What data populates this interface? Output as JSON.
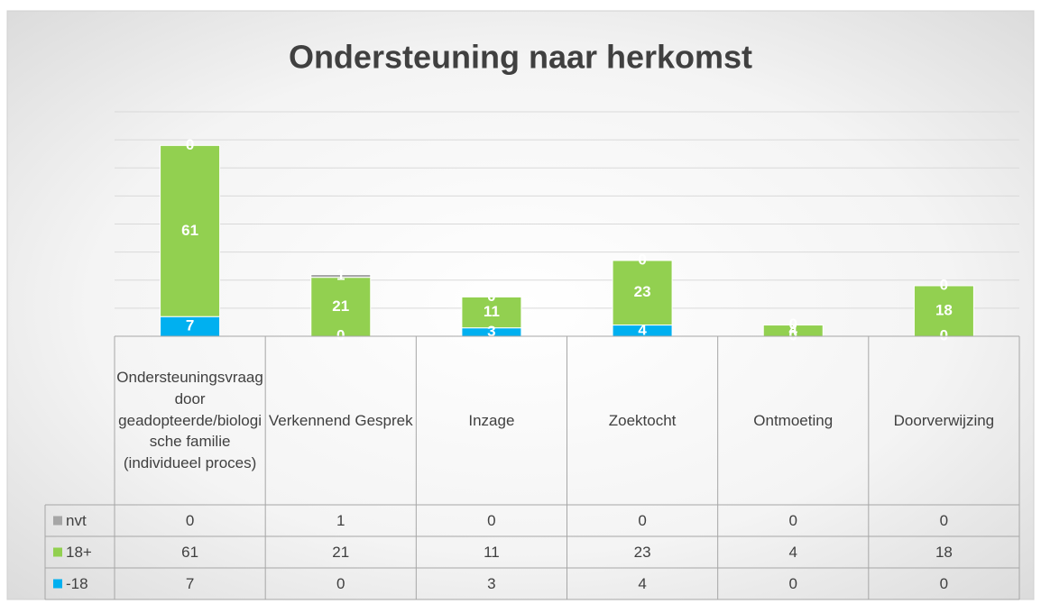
{
  "chart_data": {
    "type": "stacked_bar",
    "title": "Ondersteuning naar herkomst",
    "categories": [
      "Ondersteuningsvraag door geadopteerde/biologische familie (individueel proces)",
      "Verkennend Gesprek",
      "Inzage",
      "Zoektocht",
      "Ontmoeting",
      "Doorverwijzing"
    ],
    "series": [
      {
        "name": "-18",
        "color": "#00b0f0",
        "values": [
          7,
          0,
          3,
          4,
          0,
          0
        ]
      },
      {
        "name": "18+",
        "color": "#92d050",
        "values": [
          61,
          21,
          11,
          23,
          4,
          18
        ]
      },
      {
        "name": "nvt",
        "color": "#a6a6a6",
        "values": [
          0,
          1,
          0,
          0,
          0,
          0
        ]
      }
    ],
    "ylim": [
      0,
      80
    ],
    "yticks": [
      0,
      10,
      20,
      30,
      40,
      50,
      60,
      70,
      80
    ],
    "grid": true
  }
}
